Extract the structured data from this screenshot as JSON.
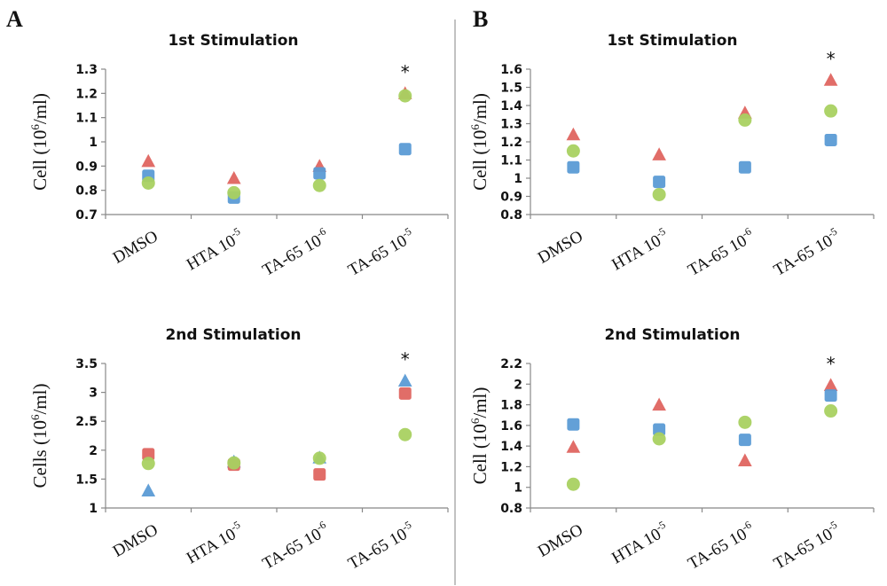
{
  "panels": {
    "a_letter": "A",
    "b_letter": "B"
  },
  "colors": {
    "red": "#e06660",
    "blue": "#5b9bd5",
    "green": "#a9d161"
  },
  "chart_data": [
    {
      "type": "scatter",
      "panel": "A",
      "title": "1st Stimulation",
      "ylabel": "Cell (10^6/ml)",
      "ylabel_base": "Cell (10",
      "ylabel_exp": "6",
      "ylabel_end": "/ml)",
      "ylim": [
        0.7,
        1.3
      ],
      "yticks": [
        "0.7",
        "0.8",
        "0.9",
        "1",
        "1.1",
        "1.2",
        "1.3"
      ],
      "categories": [
        {
          "base": "DMSO",
          "exp": ""
        },
        {
          "base": "HTA 10",
          "exp": "-5"
        },
        {
          "base": "TA-65 10",
          "exp": "-6"
        },
        {
          "base": "TA-65 10",
          "exp": "-5"
        }
      ],
      "series": [
        {
          "marker": "triangle",
          "color": "red",
          "values": [
            0.92,
            0.85,
            0.9,
            1.2
          ]
        },
        {
          "marker": "square",
          "color": "blue",
          "values": [
            0.86,
            0.77,
            0.87,
            0.97
          ]
        },
        {
          "marker": "circle",
          "color": "green",
          "values": [
            0.83,
            0.79,
            0.82,
            1.19
          ]
        }
      ],
      "significance": [
        {
          "category": 3,
          "label": "*"
        }
      ]
    },
    {
      "type": "scatter",
      "panel": "A",
      "title": "2nd Stimulation",
      "ylabel": "Cells (10^6/ml)",
      "ylabel_base": "Cells (10",
      "ylabel_exp": "6",
      "ylabel_end": "/ml)",
      "ylim": [
        1,
        3.5
      ],
      "yticks": [
        "1",
        "1.5",
        "2",
        "2.5",
        "3",
        "3.5"
      ],
      "categories": [
        {
          "base": "DMSO",
          "exp": ""
        },
        {
          "base": "HTA 10",
          "exp": "-5"
        },
        {
          "base": "TA-65 10",
          "exp": "-6"
        },
        {
          "base": "TA-65 10",
          "exp": "-5"
        }
      ],
      "series": [
        {
          "marker": "triangle",
          "color": "blue",
          "values": [
            1.3,
            1.8,
            1.87,
            3.2
          ]
        },
        {
          "marker": "square",
          "color": "red",
          "values": [
            1.93,
            1.75,
            1.58,
            2.98
          ]
        },
        {
          "marker": "circle",
          "color": "green",
          "values": [
            1.77,
            1.78,
            1.86,
            2.27
          ]
        }
      ],
      "significance": [
        {
          "category": 3,
          "label": "*"
        }
      ]
    },
    {
      "type": "scatter",
      "panel": "B",
      "title": "1st Stimulation",
      "ylabel": "Cell (10^6/ml)",
      "ylabel_base": "Cell (10",
      "ylabel_exp": "6",
      "ylabel_end": "/ml)",
      "ylim": [
        0.8,
        1.6
      ],
      "yticks": [
        "0.8",
        "0.9",
        "1",
        "1.1",
        "1.2",
        "1.3",
        "1.4",
        "1.5",
        "1.6"
      ],
      "categories": [
        {
          "base": "DMSO",
          "exp": ""
        },
        {
          "base": "HTA 10",
          "exp": "-5"
        },
        {
          "base": "TA-65 10",
          "exp": "-6"
        },
        {
          "base": "TA-65 10",
          "exp": "-5"
        }
      ],
      "series": [
        {
          "marker": "triangle",
          "color": "red",
          "values": [
            1.24,
            1.13,
            1.36,
            1.54
          ]
        },
        {
          "marker": "square",
          "color": "blue",
          "values": [
            1.06,
            0.98,
            1.06,
            1.21
          ]
        },
        {
          "marker": "circle",
          "color": "green",
          "values": [
            1.15,
            0.91,
            1.32,
            1.37
          ]
        }
      ],
      "significance": [
        {
          "category": 3,
          "label": "*"
        }
      ]
    },
    {
      "type": "scatter",
      "panel": "B",
      "title": "2nd Stimulation",
      "ylabel": "Cell (10^6/ml)",
      "ylabel_base": "Cell (10",
      "ylabel_exp": "6",
      "ylabel_end": "/ml)",
      "ylim": [
        0.8,
        2.2
      ],
      "yticks": [
        "0.8",
        "1",
        "1.2",
        "1.4",
        "1.6",
        "1.8",
        "2",
        "2.2"
      ],
      "categories": [
        {
          "base": "DMSO",
          "exp": ""
        },
        {
          "base": "HTA 10",
          "exp": "-5"
        },
        {
          "base": "TA-65 10",
          "exp": "-6"
        },
        {
          "base": "TA-65 10",
          "exp": "-5"
        }
      ],
      "series": [
        {
          "marker": "triangle",
          "color": "red",
          "values": [
            1.39,
            1.8,
            1.26,
            1.99
          ]
        },
        {
          "marker": "square",
          "color": "blue",
          "values": [
            1.61,
            1.56,
            1.46,
            1.89
          ]
        },
        {
          "marker": "circle",
          "color": "green",
          "values": [
            1.03,
            1.47,
            1.63,
            1.74
          ]
        }
      ],
      "significance": [
        {
          "category": 3,
          "label": "*"
        }
      ]
    }
  ]
}
